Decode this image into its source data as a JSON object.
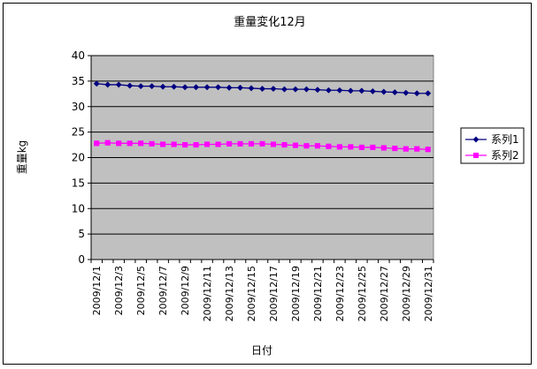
{
  "chart_data": {
    "type": "line",
    "title": "重量変化12月",
    "xlabel": "日付",
    "ylabel": "重量kg",
    "ylim": [
      0,
      40
    ],
    "yticks": [
      0,
      5,
      10,
      15,
      20,
      25,
      30,
      35,
      40
    ],
    "grid": true,
    "legend": "right",
    "x": [
      "2009/12/1",
      "2009/12/2",
      "2009/12/3",
      "2009/12/4",
      "2009/12/5",
      "2009/12/6",
      "2009/12/7",
      "2009/12/8",
      "2009/12/9",
      "2009/12/10",
      "2009/12/11",
      "2009/12/12",
      "2009/12/13",
      "2009/12/14",
      "2009/12/15",
      "2009/12/16",
      "2009/12/17",
      "2009/12/18",
      "2009/12/19",
      "2009/12/20",
      "2009/12/21",
      "2009/12/22",
      "2009/12/23",
      "2009/12/24",
      "2009/12/25",
      "2009/12/26",
      "2009/12/27",
      "2009/12/28",
      "2009/12/29",
      "2009/12/30",
      "2009/12/31"
    ],
    "xtick_labels": [
      "2009/12/1",
      "2009/12/3",
      "2009/12/5",
      "2009/12/7",
      "2009/12/9",
      "2009/12/11",
      "2009/12/13",
      "2009/12/15",
      "2009/12/17",
      "2009/12/19",
      "2009/12/21",
      "2009/12/23",
      "2009/12/25",
      "2009/12/27",
      "2009/12/29",
      "2009/12/31"
    ],
    "series": [
      {
        "name": "系列1",
        "color": "#000080",
        "marker": "diamond",
        "values": [
          34.5,
          34.3,
          34.3,
          34.1,
          34.0,
          34.0,
          33.9,
          33.9,
          33.8,
          33.8,
          33.8,
          33.8,
          33.7,
          33.7,
          33.6,
          33.5,
          33.5,
          33.4,
          33.4,
          33.4,
          33.3,
          33.2,
          33.2,
          33.1,
          33.1,
          33.0,
          32.9,
          32.8,
          32.7,
          32.6,
          32.6
        ]
      },
      {
        "name": "系列2",
        "color": "#ff00ff",
        "marker": "square",
        "values": [
          22.8,
          22.9,
          22.8,
          22.8,
          22.8,
          22.7,
          22.6,
          22.6,
          22.5,
          22.5,
          22.6,
          22.6,
          22.7,
          22.7,
          22.7,
          22.7,
          22.6,
          22.5,
          22.4,
          22.3,
          22.3,
          22.2,
          22.1,
          22.1,
          22.0,
          22.0,
          21.9,
          21.8,
          21.7,
          21.7,
          21.6
        ]
      }
    ]
  }
}
